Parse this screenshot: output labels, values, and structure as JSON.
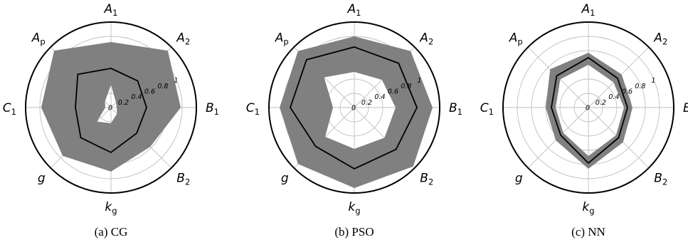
{
  "chart_data": [
    {
      "type": "radar",
      "title": "",
      "caption": "(a) CG",
      "axes": [
        {
          "base": "A",
          "sub": "1",
          "sub_style": "upright"
        },
        {
          "base": "A",
          "sub": "2",
          "sub_style": "upright"
        },
        {
          "base": "B",
          "sub": "1",
          "sub_style": "upright"
        },
        {
          "base": "B",
          "sub": "2",
          "sub_style": "upright"
        },
        {
          "base": "k",
          "sub": "g",
          "sub_style": "upright"
        },
        {
          "base": "g",
          "sub": "",
          "sub_style": "upright"
        },
        {
          "base": "C",
          "sub": "1",
          "sub_style": "upright"
        },
        {
          "base": "A",
          "sub": "p",
          "sub_style": "upright"
        }
      ],
      "rlim": [
        0,
        1.2
      ],
      "ticks": [
        0,
        0.2,
        0.4,
        0.6,
        0.8,
        1
      ],
      "tick_labels": [
        "0",
        "0.2",
        "0.4",
        "0.6",
        "0.8",
        "1"
      ],
      "grid": true,
      "band_lower": [
        0.32,
        0.1,
        0.08,
        0.12,
        0.22,
        0.28,
        0.08,
        0.12
      ],
      "band_upper": [
        0.92,
        1.13,
        0.98,
        0.78,
        0.9,
        0.96,
        0.98,
        1.13
      ],
      "mean": [
        0.55,
        0.53,
        0.5,
        0.51,
        0.63,
        0.6,
        0.5,
        0.66
      ]
    },
    {
      "type": "radar",
      "title": "",
      "caption": "(b) PSO",
      "axes": [
        {
          "base": "A",
          "sub": "1",
          "sub_style": "upright"
        },
        {
          "base": "A",
          "sub": "2",
          "sub_style": "upright"
        },
        {
          "base": "B",
          "sub": "1",
          "sub_style": "upright"
        },
        {
          "base": "B",
          "sub": "2",
          "sub_style": "upright"
        },
        {
          "base": "k",
          "sub": "g",
          "sub_style": "upright"
        },
        {
          "base": "g",
          "sub": "",
          "sub_style": "upright"
        },
        {
          "base": "C",
          "sub": "1",
          "sub_style": "upright"
        },
        {
          "base": "A",
          "sub": "p",
          "sub_style": "upright"
        }
      ],
      "rlim": [
        0,
        1.2
      ],
      "ticks": [
        0,
        0.2,
        0.4,
        0.6,
        0.8,
        1
      ],
      "tick_labels": [
        "0",
        "0.2",
        "0.4",
        "0.6",
        "0.8",
        "1"
      ],
      "grid": true,
      "band_lower": [
        0.5,
        0.55,
        0.58,
        0.6,
        0.58,
        0.58,
        0.3,
        0.6
      ],
      "band_upper": [
        1.0,
        1.12,
        1.1,
        1.17,
        1.13,
        1.12,
        1.05,
        1.12
      ],
      "mean": [
        0.85,
        0.88,
        0.88,
        0.83,
        0.86,
        0.77,
        0.9,
        0.95
      ]
    },
    {
      "type": "radar",
      "title": "",
      "caption": "(c) NN",
      "axes": [
        {
          "base": "A",
          "sub": "1",
          "sub_style": "upright"
        },
        {
          "base": "A",
          "sub": "2",
          "sub_style": "upright"
        },
        {
          "base": "B",
          "sub": "",
          "sub_style": "upright"
        },
        {
          "base": "B",
          "sub": "2",
          "sub_style": "upright"
        },
        {
          "base": "k",
          "sub": "g",
          "sub_style": "upright"
        },
        {
          "base": "g",
          "sub": "",
          "sub_style": "upright"
        },
        {
          "base": "C",
          "sub": "1",
          "sub_style": "upright"
        },
        {
          "base": "A",
          "sub": "p",
          "sub_style": "upright"
        }
      ],
      "rlim": [
        0,
        1.2
      ],
      "ticks": [
        0,
        0.2,
        0.4,
        0.6,
        0.8,
        1
      ],
      "tick_labels": [
        "0",
        "0.2",
        "0.4",
        "0.6",
        "0.8",
        "1"
      ],
      "grid": true,
      "band_lower": [
        0.6,
        0.5,
        0.5,
        0.55,
        0.68,
        0.5,
        0.46,
        0.56
      ],
      "band_upper": [
        0.77,
        0.66,
        0.62,
        0.69,
        0.86,
        0.65,
        0.6,
        0.76
      ],
      "mean": [
        0.7,
        0.58,
        0.55,
        0.6,
        0.78,
        0.55,
        0.52,
        0.63
      ]
    }
  ],
  "colors": {
    "band": "#808080",
    "mean_line": "#000000",
    "grid": "#bfbfbf",
    "frame": "#000000"
  }
}
